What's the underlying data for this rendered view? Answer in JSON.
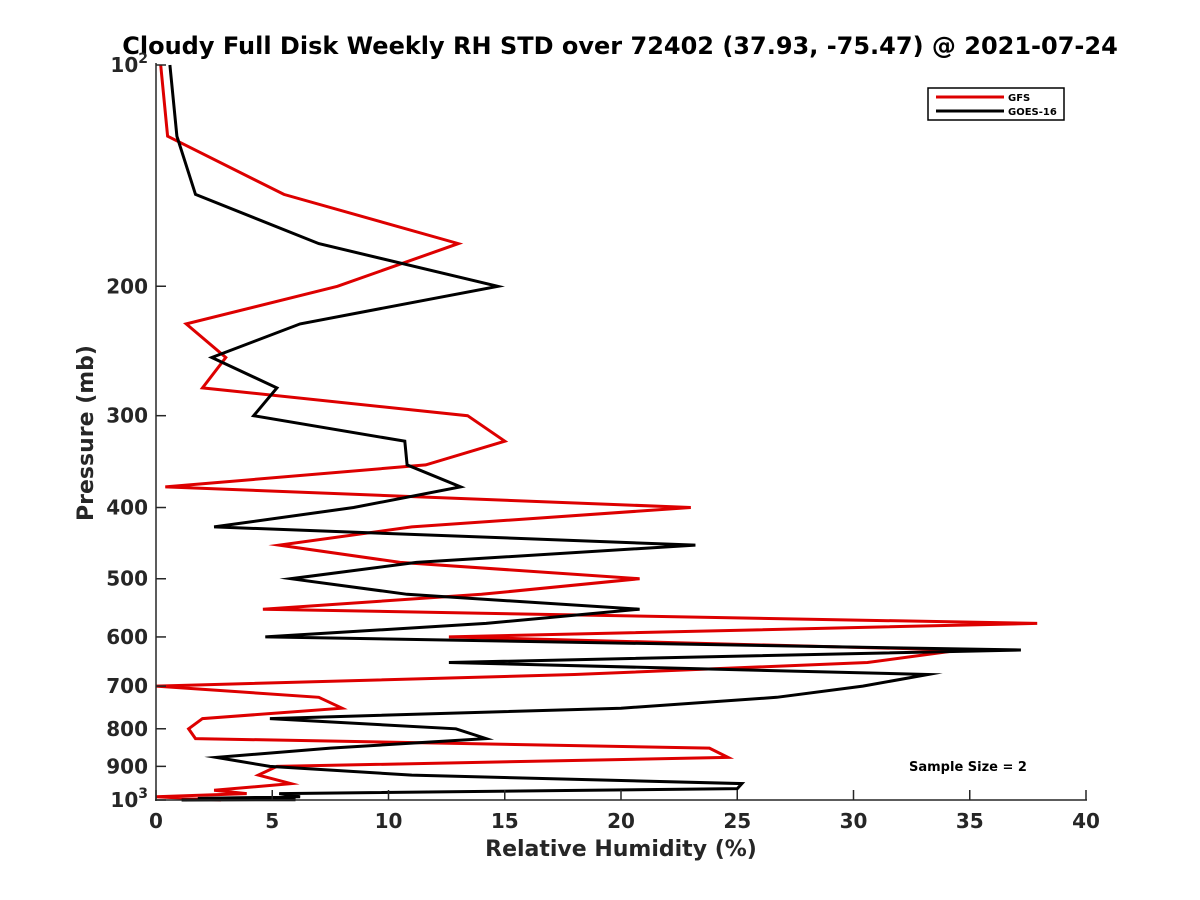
{
  "chart_data": {
    "type": "line",
    "title": "Cloudy Full Disk Weekly RH STD over 72402 (37.93, -75.47) @ 2021-07-24",
    "xlabel": "Relative Humidity (%)",
    "ylabel": "Pressure (mb)",
    "xlim": [
      0,
      40
    ],
    "ylim": [
      100,
      1000
    ],
    "yscale": "log",
    "y_reversed": true,
    "grid": false,
    "legend_placement": "top-right",
    "x_ticks": [
      "0",
      "5",
      "10",
      "15",
      "20",
      "25",
      "30",
      "35",
      "40"
    ],
    "y_ticks": [
      {
        "value": 100,
        "base": "10",
        "exp": "2"
      },
      {
        "value": 200,
        "label": "200"
      },
      {
        "value": 300,
        "label": "300"
      },
      {
        "value": 400,
        "label": "400"
      },
      {
        "value": 500,
        "label": "500"
      },
      {
        "value": 600,
        "label": "600"
      },
      {
        "value": 700,
        "label": "700"
      },
      {
        "value": 800,
        "label": "800"
      },
      {
        "value": 900,
        "label": "900"
      },
      {
        "value": 1000,
        "base": "10",
        "exp": "3"
      }
    ],
    "annotation": "Sample Size = 2",
    "series": [
      {
        "name": "GFS",
        "color": "#dd0000",
        "points": [
          [
            0.2,
            100
          ],
          [
            0.5,
            125
          ],
          [
            5.5,
            150
          ],
          [
            13,
            175
          ],
          [
            7.8,
            200
          ],
          [
            1.3,
            225
          ],
          [
            3.0,
            250
          ],
          [
            2.0,
            275
          ],
          [
            13.4,
            300
          ],
          [
            15.0,
            325
          ],
          [
            11.6,
            350
          ],
          [
            0.4,
            375
          ],
          [
            23.0,
            400
          ],
          [
            11.0,
            425
          ],
          [
            5.3,
            450
          ],
          [
            10.5,
            475
          ],
          [
            20.8,
            500
          ],
          [
            14.0,
            525
          ],
          [
            4.6,
            550
          ],
          [
            37.9,
            575
          ],
          [
            12.6,
            600
          ],
          [
            34.6,
            625
          ],
          [
            30.6,
            650
          ],
          [
            18.0,
            675
          ],
          [
            0.0,
            700
          ],
          [
            7.0,
            725
          ],
          [
            8.0,
            750
          ],
          [
            2.0,
            775
          ],
          [
            1.4,
            800
          ],
          [
            1.7,
            825
          ],
          [
            23.8,
            850
          ],
          [
            24.6,
            875
          ],
          [
            5.2,
            900
          ],
          [
            4.4,
            925
          ],
          [
            5.8,
            950
          ],
          [
            2.5,
            970
          ],
          [
            3.9,
            980
          ],
          [
            0.0,
            990
          ],
          [
            2.8,
            1000
          ]
        ]
      },
      {
        "name": "GOES-16",
        "color": "#000000",
        "points": [
          [
            0.6,
            100
          ],
          [
            0.9,
            125
          ],
          [
            1.7,
            150
          ],
          [
            7.0,
            175
          ],
          [
            14.7,
            200
          ],
          [
            6.2,
            225
          ],
          [
            2.4,
            250
          ],
          [
            5.2,
            275
          ],
          [
            4.2,
            300
          ],
          [
            10.7,
            325
          ],
          [
            10.8,
            350
          ],
          [
            13.1,
            375
          ],
          [
            8.5,
            400
          ],
          [
            2.5,
            425
          ],
          [
            23.2,
            450
          ],
          [
            11.2,
            475
          ],
          [
            5.8,
            500
          ],
          [
            10.8,
            525
          ],
          [
            20.8,
            550
          ],
          [
            14.2,
            575
          ],
          [
            4.7,
            600
          ],
          [
            37.2,
            625
          ],
          [
            12.6,
            650
          ],
          [
            33.2,
            675
          ],
          [
            30.4,
            700
          ],
          [
            26.7,
            725
          ],
          [
            20.0,
            750
          ],
          [
            4.9,
            775
          ],
          [
            12.9,
            800
          ],
          [
            14.2,
            825
          ],
          [
            7.5,
            850
          ],
          [
            2.6,
            875
          ],
          [
            4.9,
            900
          ],
          [
            11.0,
            925
          ],
          [
            25.2,
            950
          ],
          [
            25.0,
            965
          ],
          [
            5.3,
            980
          ],
          [
            6.2,
            990
          ],
          [
            1.8,
            995
          ],
          [
            5.7,
            997
          ],
          [
            6.0,
            999
          ],
          [
            1.1,
            1000
          ]
        ]
      }
    ]
  }
}
